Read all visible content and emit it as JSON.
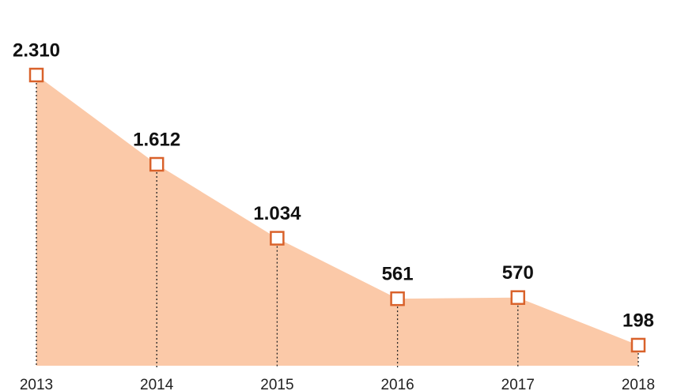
{
  "chart_data": {
    "type": "area",
    "categories": [
      "2013",
      "2014",
      "2015",
      "2016",
      "2017",
      "2018"
    ],
    "values": [
      2310,
      1612,
      1034,
      561,
      570,
      198
    ],
    "value_labels": [
      "2.310",
      "1.612",
      "1.034",
      "561",
      "570",
      "198"
    ],
    "color": "#fbc9a8",
    "marker_color": "#d9622b"
  }
}
